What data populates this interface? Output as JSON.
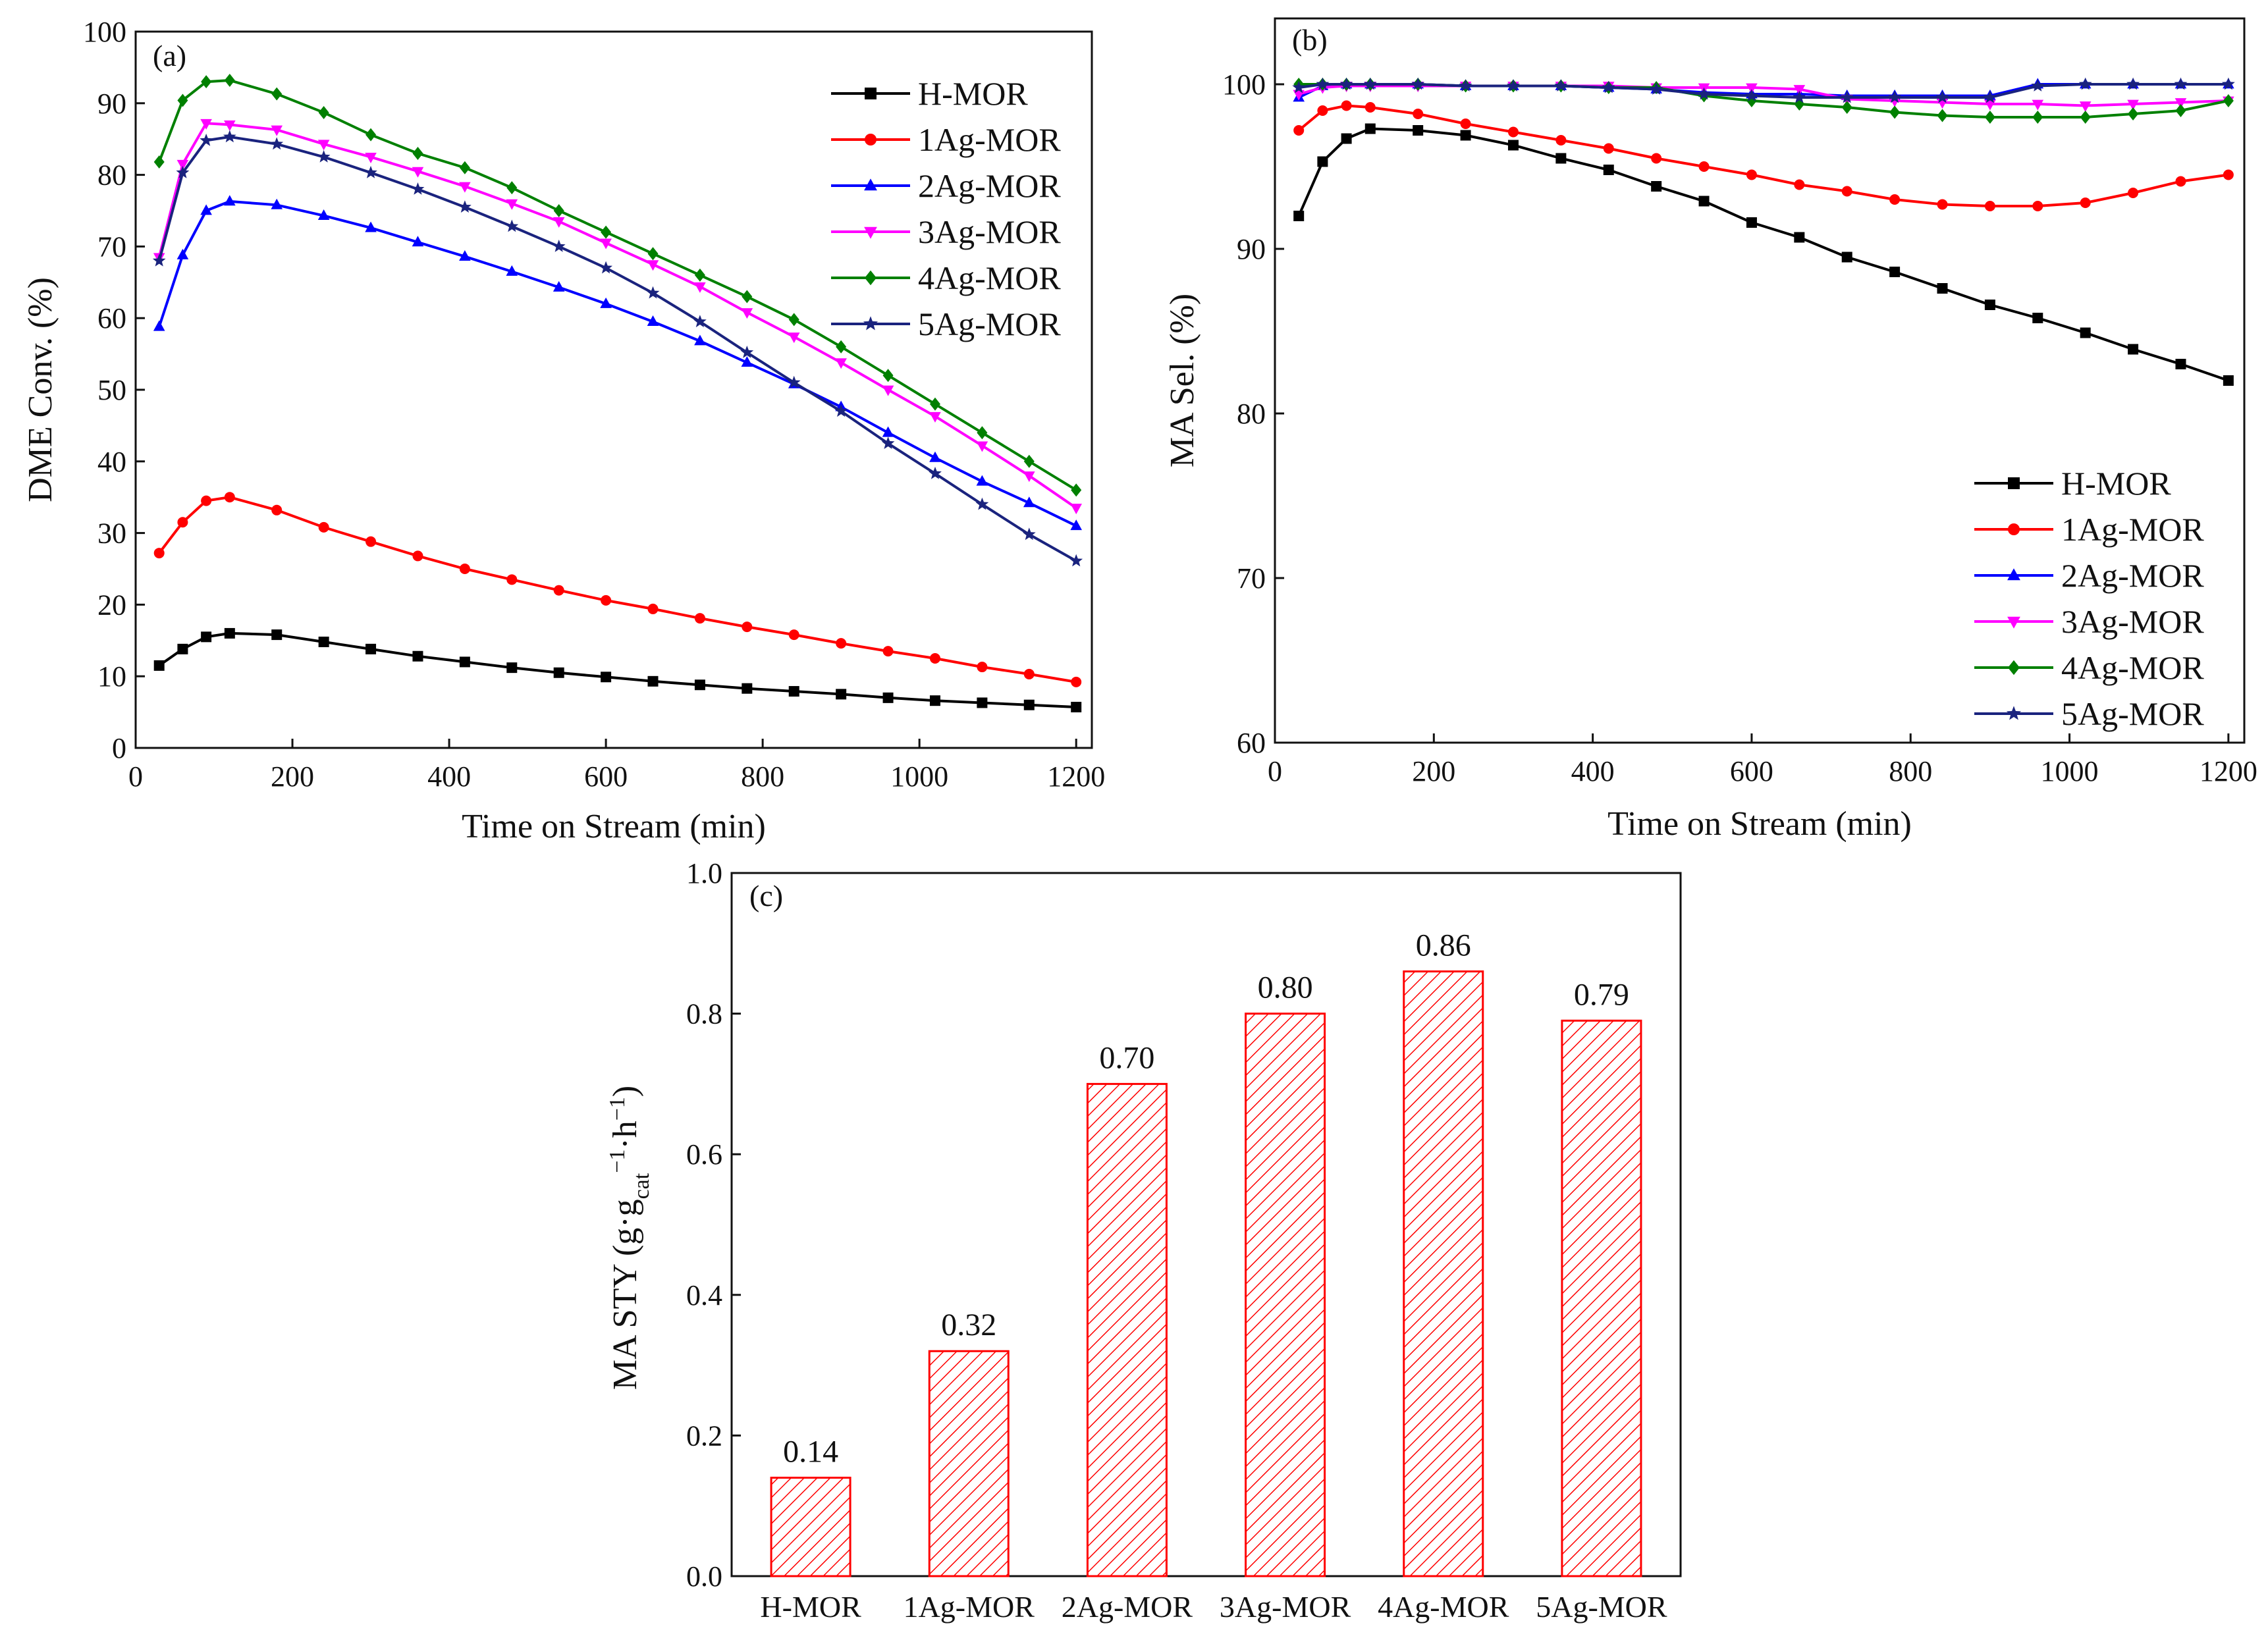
{
  "chart_data": [
    {
      "id": "a",
      "panel_label": "(a)",
      "type": "line",
      "xlabel": "Time on Stream (min)",
      "ylabel": "DME Conv. (%)",
      "xlim": [
        0,
        1220
      ],
      "ylim": [
        0,
        100
      ],
      "xticks": [
        0,
        200,
        400,
        600,
        800,
        1000,
        1200
      ],
      "yticks": [
        0,
        10,
        20,
        30,
        40,
        50,
        60,
        70,
        80,
        90,
        100
      ],
      "legend_position": "top-right",
      "x": [
        30,
        60,
        90,
        120,
        180,
        240,
        300,
        360,
        420,
        480,
        540,
        600,
        660,
        720,
        780,
        840,
        900,
        960,
        1020,
        1080,
        1140,
        1200
      ],
      "series": [
        {
          "name": "H-MOR",
          "color": "#000000",
          "marker": "square",
          "values": [
            11.5,
            13.8,
            15.5,
            16.0,
            15.8,
            14.8,
            13.8,
            12.8,
            12.0,
            11.2,
            10.5,
            9.9,
            9.3,
            8.8,
            8.3,
            7.9,
            7.5,
            7.0,
            6.6,
            6.3,
            6.0,
            5.7
          ]
        },
        {
          "name": "1Ag-MOR",
          "color": "#ff0000",
          "marker": "circle",
          "values": [
            27.2,
            31.5,
            34.5,
            35.0,
            33.2,
            30.8,
            28.8,
            26.8,
            25.0,
            23.5,
            22.0,
            20.6,
            19.4,
            18.1,
            16.9,
            15.8,
            14.6,
            13.5,
            12.5,
            11.3,
            10.3,
            9.2
          ]
        },
        {
          "name": "2Ag-MOR",
          "color": "#0000ff",
          "marker": "triangle-up",
          "values": [
            58.8,
            68.8,
            75.0,
            76.3,
            75.8,
            74.3,
            72.6,
            70.6,
            68.6,
            66.5,
            64.3,
            62.0,
            59.5,
            56.8,
            53.8,
            50.8,
            47.6,
            44.0,
            40.5,
            37.2,
            34.2,
            31.0
          ]
        },
        {
          "name": "3Ag-MOR",
          "color": "#ff00ff",
          "marker": "triangle-down",
          "values": [
            68.5,
            81.5,
            87.2,
            87.0,
            86.3,
            84.3,
            82.5,
            80.5,
            78.4,
            76.0,
            73.5,
            70.5,
            67.5,
            64.4,
            60.8,
            57.4,
            53.8,
            50.0,
            46.3,
            42.2,
            38.0,
            33.5
          ]
        },
        {
          "name": "4Ag-MOR",
          "color": "#008000",
          "marker": "diamond",
          "values": [
            81.8,
            90.4,
            93.0,
            93.2,
            91.3,
            88.7,
            85.6,
            83.0,
            81.0,
            78.2,
            75.0,
            72.0,
            69.0,
            66.0,
            63.0,
            59.8,
            56.0,
            52.0,
            48.0,
            44.0,
            40.0,
            36.0
          ]
        },
        {
          "name": "5Ag-MOR",
          "color": "#1a237e",
          "marker": "star",
          "values": [
            68.0,
            80.3,
            84.8,
            85.3,
            84.3,
            82.5,
            80.3,
            78.0,
            75.5,
            72.8,
            70.0,
            67.0,
            63.5,
            59.5,
            55.2,
            51.0,
            47.0,
            42.5,
            38.3,
            34.0,
            29.8,
            26.1
          ]
        }
      ]
    },
    {
      "id": "b",
      "panel_label": "(b)",
      "type": "line",
      "xlabel": "Time on Stream (min)",
      "ylabel": "MA Sel. (%)",
      "xlim": [
        0,
        1220
      ],
      "ylim": [
        60,
        104
      ],
      "xticks": [
        0,
        200,
        400,
        600,
        800,
        1000,
        1200
      ],
      "yticks": [
        60,
        70,
        80,
        90,
        100
      ],
      "legend_position": "bottom-right",
      "x": [
        30,
        60,
        90,
        120,
        180,
        240,
        300,
        360,
        420,
        480,
        540,
        600,
        660,
        720,
        780,
        840,
        900,
        960,
        1020,
        1080,
        1140,
        1200
      ],
      "series": [
        {
          "name": "H-MOR",
          "color": "#000000",
          "marker": "square",
          "values": [
            92.0,
            95.3,
            96.7,
            97.3,
            97.2,
            96.9,
            96.3,
            95.5,
            94.8,
            93.8,
            92.9,
            91.6,
            90.7,
            89.5,
            88.6,
            87.6,
            86.6,
            85.8,
            84.9,
            83.9,
            83.0,
            82.0
          ]
        },
        {
          "name": "1Ag-MOR",
          "color": "#ff0000",
          "marker": "circle",
          "values": [
            97.2,
            98.4,
            98.7,
            98.6,
            98.2,
            97.6,
            97.1,
            96.6,
            96.1,
            95.5,
            95.0,
            94.5,
            93.9,
            93.5,
            93.0,
            92.7,
            92.6,
            92.6,
            92.8,
            93.4,
            94.1,
            94.5
          ]
        },
        {
          "name": "2Ag-MOR",
          "color": "#0000ff",
          "marker": "triangle-up",
          "values": [
            99.2,
            99.9,
            100.0,
            100.0,
            100.0,
            99.9,
            99.9,
            99.9,
            99.8,
            99.7,
            99.5,
            99.4,
            99.4,
            99.3,
            99.3,
            99.3,
            99.3,
            100.0,
            100.0,
            100.0,
            100.0,
            100.0
          ]
        },
        {
          "name": "3Ag-MOR",
          "color": "#ff00ff",
          "marker": "triangle-down",
          "values": [
            99.4,
            99.8,
            99.9,
            99.9,
            99.9,
            99.9,
            99.9,
            99.9,
            99.9,
            99.8,
            99.8,
            99.8,
            99.7,
            99.1,
            99.0,
            98.9,
            98.8,
            98.8,
            98.7,
            98.8,
            98.9,
            99.0
          ]
        },
        {
          "name": "4Ag-MOR",
          "color": "#008000",
          "marker": "diamond",
          "values": [
            100.0,
            100.0,
            100.0,
            100.0,
            100.0,
            99.9,
            99.9,
            99.9,
            99.8,
            99.8,
            99.3,
            99.0,
            98.8,
            98.6,
            98.3,
            98.1,
            98.0,
            98.0,
            98.0,
            98.2,
            98.4,
            99.0
          ]
        },
        {
          "name": "5Ag-MOR",
          "color": "#1a237e",
          "marker": "star",
          "values": [
            99.8,
            100.0,
            100.0,
            100.0,
            100.0,
            99.9,
            99.9,
            99.9,
            99.8,
            99.7,
            99.4,
            99.3,
            99.2,
            99.2,
            99.2,
            99.2,
            99.2,
            99.9,
            100.0,
            100.0,
            100.0,
            100.0
          ]
        }
      ]
    },
    {
      "id": "c",
      "panel_label": "(c)",
      "type": "bar",
      "xlabel": "",
      "ylabel": "MA STY (g·g_cat^-1·h^-1)",
      "ylabel_parts": {
        "prefix": "MA STY (g·g",
        "sub": "cat",
        "sup1": "−1",
        "mid": "·h",
        "sup2": "−1",
        "suffix": ")"
      },
      "ylim": [
        0,
        1.0
      ],
      "yticks": [
        0.0,
        0.2,
        0.4,
        0.6,
        0.8,
        1.0
      ],
      "ytick_labels": [
        "0.0",
        "0.2",
        "0.4",
        "0.6",
        "0.8",
        "1.0"
      ],
      "categories": [
        "H-MOR",
        "1Ag-MOR",
        "2Ag-MOR",
        "3Ag-MOR",
        "4Ag-MOR",
        "5Ag-MOR"
      ],
      "values": [
        0.14,
        0.32,
        0.7,
        0.8,
        0.86,
        0.79
      ],
      "value_labels": [
        "0.14",
        "0.32",
        "0.70",
        "0.80",
        "0.86",
        "0.79"
      ],
      "bar_color": "#ff0000",
      "fill_pattern": "diagonal-hatch"
    }
  ]
}
